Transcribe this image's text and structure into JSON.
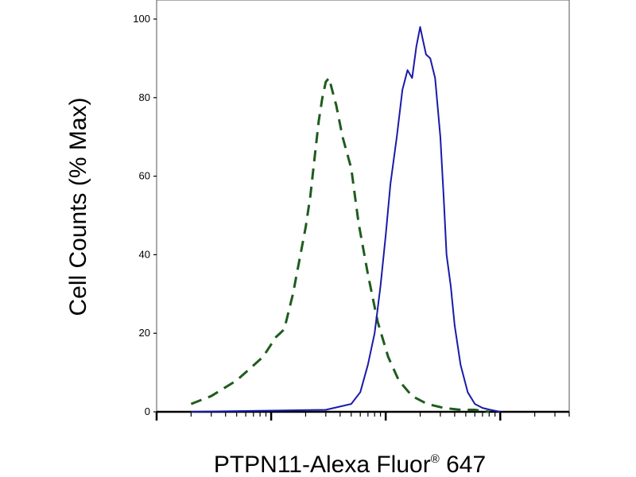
{
  "chart_data": {
    "type": "line",
    "xlabel": "PTPN11-Alexa Fluor",
    "xlabel_reg": "®",
    "xlabel_suffix": " 647",
    "ylabel": "Cell Counts (% Max)",
    "xscale": "log",
    "xlim": [
      1,
      4000
    ],
    "ylim": [
      0,
      100
    ],
    "yticks": [
      0,
      20,
      40,
      60,
      80,
      100
    ],
    "grid": false,
    "colors": {
      "control": "#1e5c1e",
      "sample": "#1a1aaa"
    },
    "series": [
      {
        "line_style": "dashed",
        "x": [
          2.0,
          3.0,
          5.0,
          8.5,
          11.0,
          13.0,
          15.5,
          18.0,
          20.0,
          22.0,
          24.0,
          26.0,
          28.0,
          30.0,
          32.0,
          34.0,
          37.0,
          42.0,
          50.0,
          58.0,
          70.0,
          85.0,
          105.0,
          130.0,
          170.0,
          230.0,
          320.0,
          450.0,
          600.0,
          800.0
        ],
        "y": [
          2,
          4,
          8,
          14,
          19,
          21,
          30,
          40,
          47,
          55,
          65,
          74,
          80,
          84,
          85,
          82,
          78,
          70,
          62,
          48,
          35,
          23,
          14,
          8,
          4,
          2,
          1,
          0.5,
          0.5,
          0
        ]
      },
      {
        "line_style": "solid",
        "x": [
          2.0,
          10.0,
          30.0,
          50.0,
          60.0,
          70.0,
          80.0,
          90.0,
          100.0,
          110.0,
          125.0,
          140.0,
          155.0,
          170.0,
          185.0,
          200.0,
          210.0,
          225.0,
          245.0,
          270.0,
          300.0,
          320.0,
          340.0,
          370.0,
          400.0,
          450.0,
          520.0,
          600.0,
          700.0,
          820.0,
          1000.0
        ],
        "y": [
          0,
          0.3,
          0.5,
          2,
          5,
          12,
          20,
          32,
          45,
          58,
          70,
          82,
          87,
          85,
          93,
          98,
          95,
          91,
          90,
          85,
          70,
          55,
          40,
          32,
          22,
          12,
          5,
          2,
          1,
          0.5,
          0
        ]
      }
    ]
  }
}
